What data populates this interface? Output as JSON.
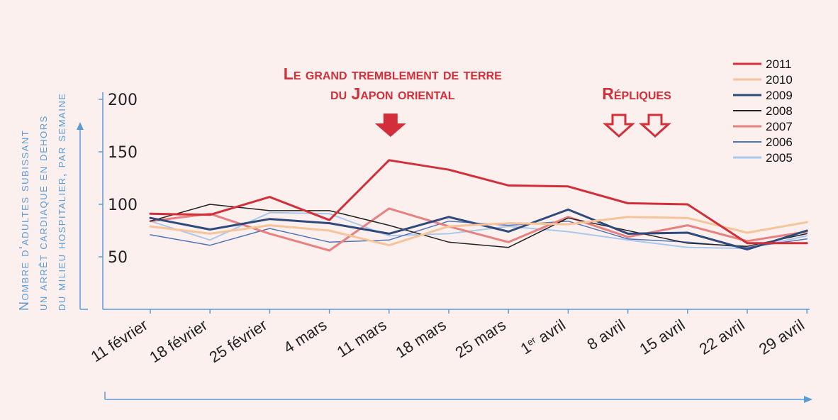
{
  "chart_data": {
    "type": "line",
    "title": "",
    "ylabel_lines": [
      "Nombre d'adultes subissant",
      "un arrêt cardiaque en dehors",
      "du milieu hospitalier, par semaine"
    ],
    "xlabel": "",
    "categories": [
      "11 février",
      "18 février",
      "25 février",
      "4 mars",
      "11 mars",
      "18 mars",
      "25 mars",
      "1er avril",
      "8 avril",
      "15 avril",
      "22 avril",
      "29 avril"
    ],
    "yticks": [
      50,
      100,
      150,
      200
    ],
    "ylim": [
      0,
      200
    ],
    "grid": false,
    "legend_position": "top-right",
    "series": [
      {
        "name": "2011",
        "color": "#d32f3a",
        "width": 3,
        "values": [
          91,
          90,
          107,
          85,
          142,
          133,
          118,
          117,
          101,
          100,
          63,
          63
        ]
      },
      {
        "name": "2010",
        "color": "#f5c49a",
        "width": 3,
        "values": [
          79,
          72,
          80,
          75,
          61,
          79,
          82,
          81,
          88,
          87,
          73,
          83
        ]
      },
      {
        "name": "2009",
        "color": "#2e4a7d",
        "width": 3,
        "values": [
          87,
          76,
          86,
          82,
          72,
          88,
          74,
          95,
          72,
          73,
          57,
          75
        ]
      },
      {
        "name": "2008",
        "color": "#222222",
        "width": 1.5,
        "values": [
          84,
          100,
          94,
          94,
          80,
          64,
          59,
          87,
          75,
          63,
          60,
          72
        ]
      },
      {
        "name": "2007",
        "color": "#e88080",
        "width": 3,
        "values": [
          84,
          91,
          72,
          56,
          96,
          79,
          64,
          88,
          69,
          80,
          65,
          74
        ]
      },
      {
        "name": "2006",
        "color": "#4f72b8",
        "width": 1.5,
        "values": [
          71,
          61,
          77,
          64,
          66,
          84,
          80,
          84,
          67,
          64,
          59,
          67
        ]
      },
      {
        "name": "2005",
        "color": "#a9c8ec",
        "width": 2,
        "values": [
          84,
          66,
          92,
          91,
          70,
          72,
          79,
          74,
          66,
          59,
          58,
          70
        ]
      }
    ],
    "annotations": [
      {
        "lines": [
          "Le grand tremblement de terre",
          "du Japon oriental"
        ],
        "category": "11 mars",
        "marker": "filled-arrow-down"
      },
      {
        "lines": [
          "Répliques"
        ],
        "category": "8 avril",
        "marker": "outline-arrow-down",
        "count": 2
      }
    ]
  },
  "colors": {
    "background": "#fcf0ee",
    "axis": "#5b9bd5",
    "axis_label": "#5b9bd5",
    "annotation": "#d32f3a"
  }
}
